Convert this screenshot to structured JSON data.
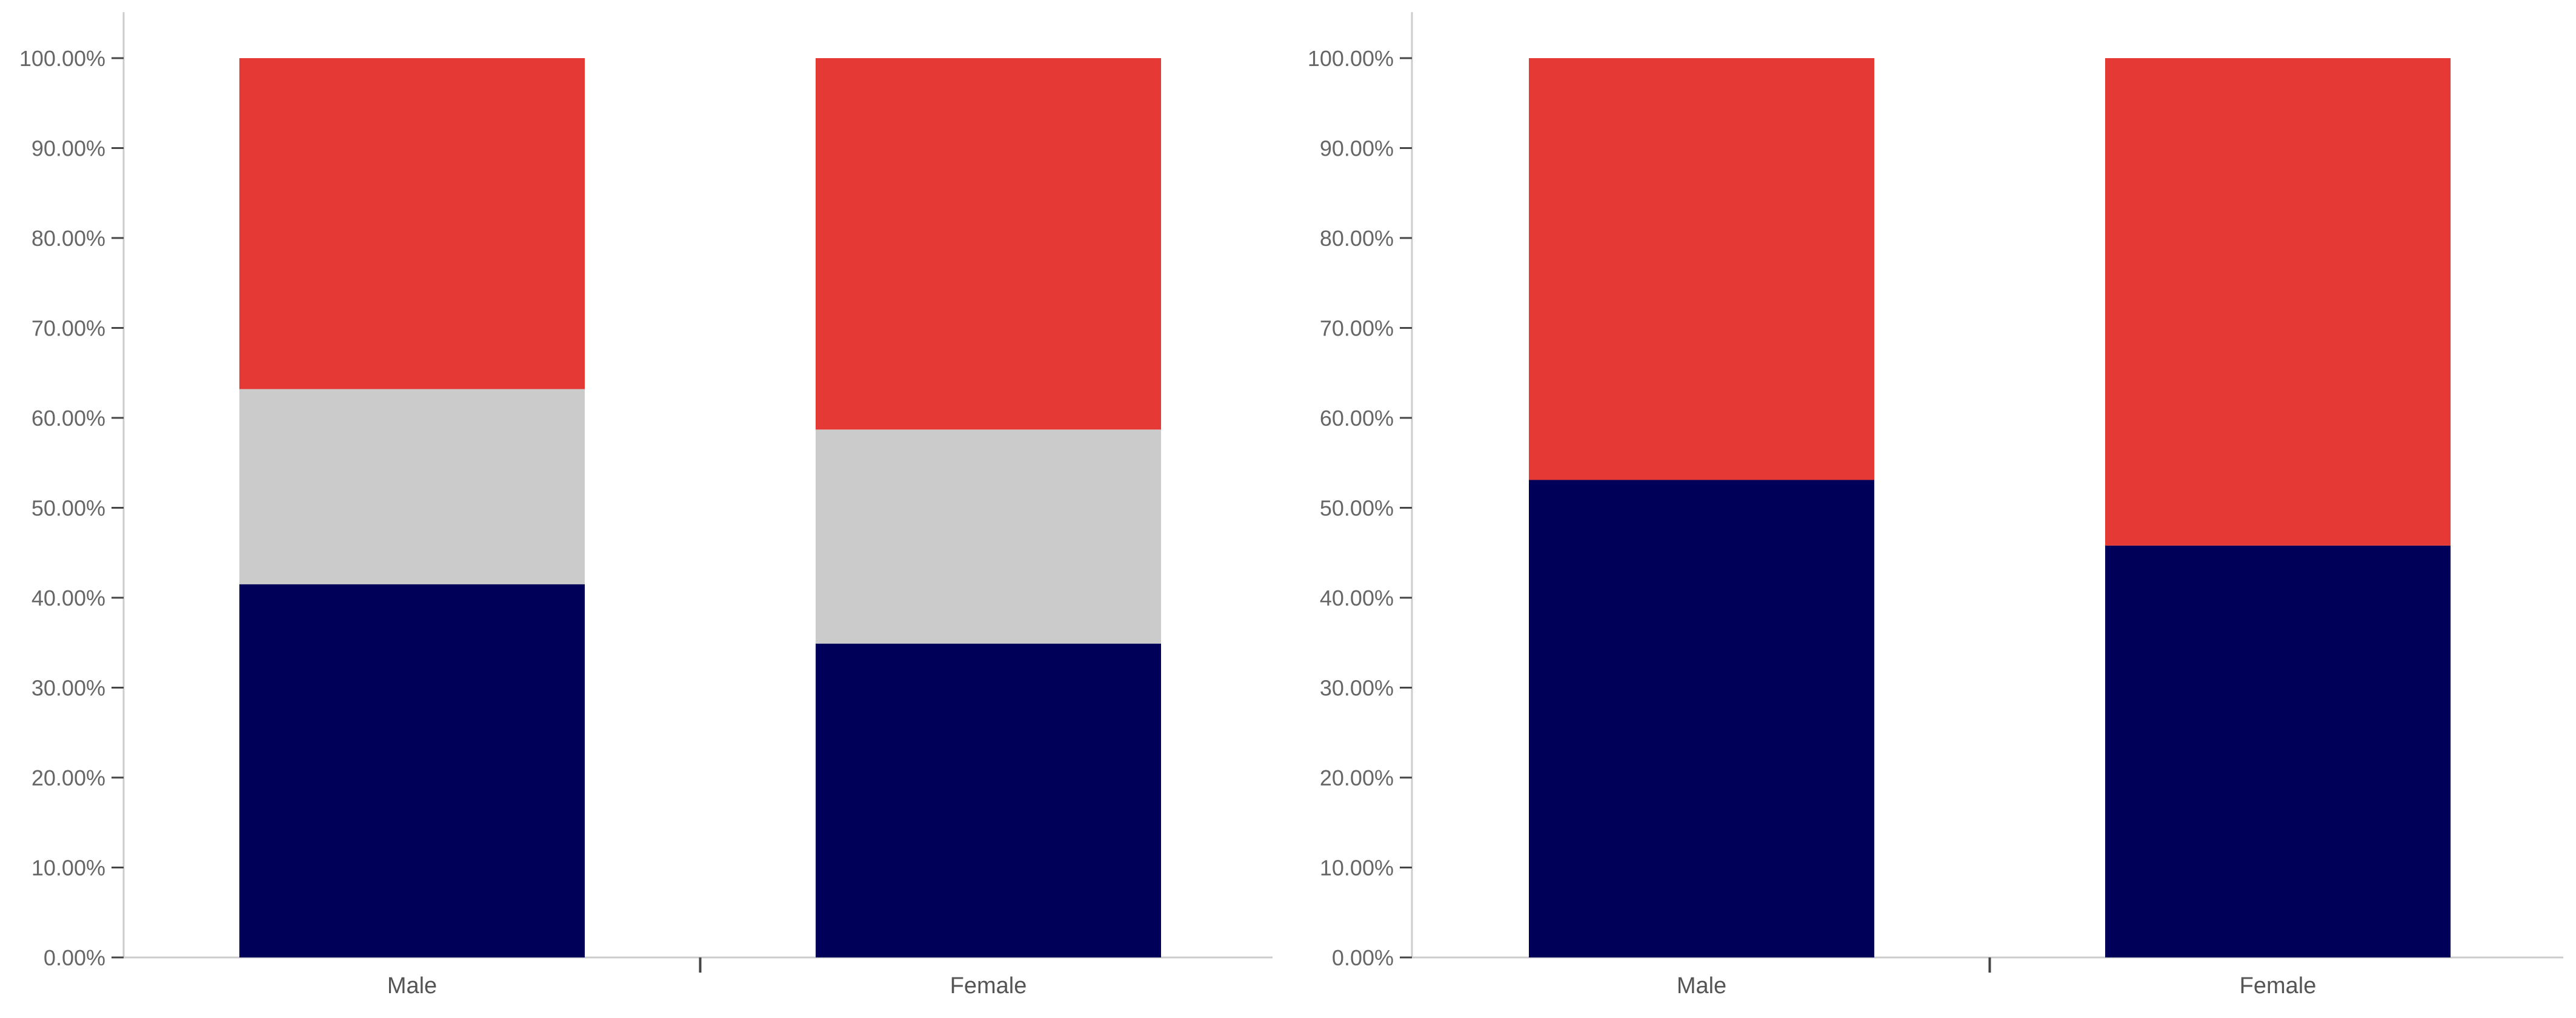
{
  "chart_data": [
    {
      "type": "bar",
      "stacked": true,
      "categories": [
        "Male",
        "Female"
      ],
      "series": [
        {
          "color": "#000058",
          "values": [
            41.5,
            34.9
          ]
        },
        {
          "color": "#cbcbcb",
          "values": [
            21.7,
            23.8
          ]
        },
        {
          "color": "#e43935",
          "values": [
            36.8,
            41.3
          ]
        }
      ],
      "title": "",
      "xlabel": "",
      "ylabel": "",
      "ylim": [
        0,
        100
      ],
      "ytick_values": [
        0,
        10,
        20,
        30,
        40,
        50,
        60,
        70,
        80,
        90,
        100
      ],
      "ytick_labels": [
        "0.00%",
        "10.00%",
        "20.00%",
        "30.00%",
        "40.00%",
        "50.00%",
        "60.00%",
        "70.00%",
        "80.00%",
        "90.00%",
        "100.00%"
      ],
      "grid": false,
      "legend": "none"
    },
    {
      "type": "bar",
      "stacked": true,
      "categories": [
        "Male",
        "Female"
      ],
      "series": [
        {
          "color": "#000058",
          "values": [
            53.1,
            45.8
          ]
        },
        {
          "color": "#e43935",
          "values": [
            46.9,
            54.2
          ]
        }
      ],
      "title": "",
      "xlabel": "",
      "ylabel": "",
      "ylim": [
        0,
        100
      ],
      "ytick_values": [
        0,
        10,
        20,
        30,
        40,
        50,
        60,
        70,
        80,
        90,
        100
      ],
      "ytick_labels": [
        "0.00%",
        "10.00%",
        "20.00%",
        "30.00%",
        "40.00%",
        "50.00%",
        "60.00%",
        "70.00%",
        "80.00%",
        "90.00%",
        "100.00%"
      ],
      "grid": false,
      "legend": "none"
    }
  ]
}
